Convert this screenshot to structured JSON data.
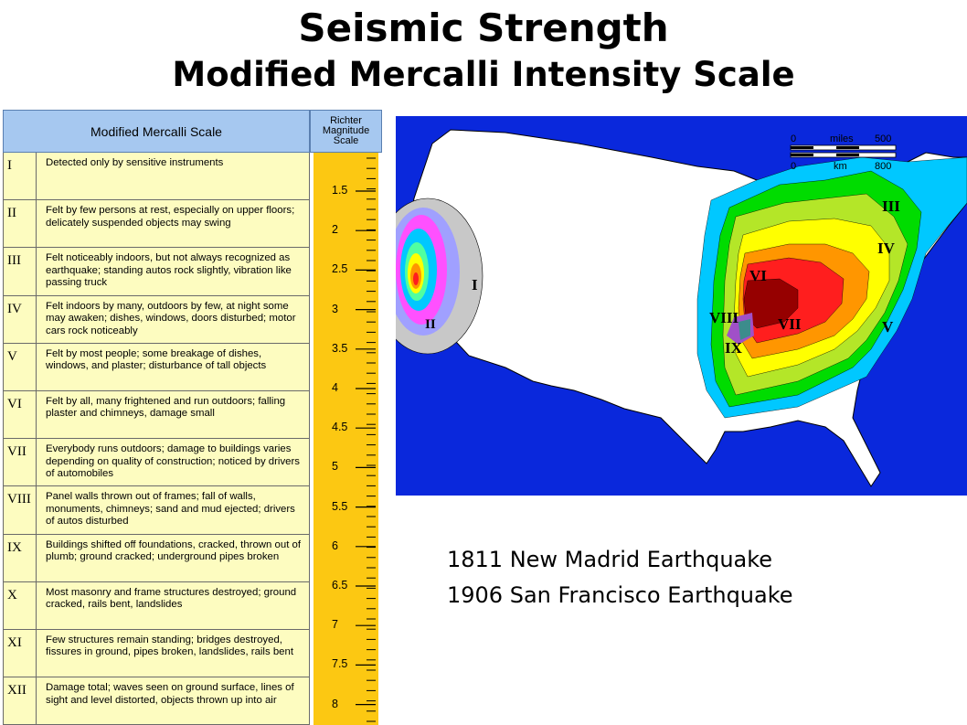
{
  "title": "Seismic Strength",
  "subtitle": "Modified Mercalli Intensity Scale",
  "scale": {
    "header_mmi": "Modified Mercalli Scale",
    "header_richter": [
      "Richter",
      "Magnitude",
      "Scale"
    ],
    "rows": [
      {
        "roman": "I",
        "desc": "Detected only by sensitive instruments"
      },
      {
        "roman": "II",
        "desc": "Felt by few persons at rest, especially on upper floors; delicately suspended objects may swing"
      },
      {
        "roman": "III",
        "desc": "Felt noticeably indoors, but not always recognized as earthquake; standing autos rock slightly, vibration like passing truck"
      },
      {
        "roman": "IV",
        "desc": "Felt indoors by many, outdoors by few, at night some may awaken; dishes, windows, doors disturbed; motor cars rock noticeably"
      },
      {
        "roman": "V",
        "desc": "Felt by most people; some breakage of dishes, windows, and plaster; disturbance of tall objects"
      },
      {
        "roman": "VI",
        "desc": "Felt by all, many frightened and run outdoors; falling plaster and chimneys, damage small"
      },
      {
        "roman": "VII",
        "desc": "Everybody runs outdoors; damage to buildings varies depending on quality of construction; noticed by drivers of automobiles"
      },
      {
        "roman": "VIII",
        "desc": "Panel walls thrown out of frames; fall of walls, monuments, chimneys; sand and mud ejected; drivers of autos disturbed"
      },
      {
        "roman": "IX",
        "desc": "Buildings shifted off foundations, cracked, thrown out of plumb; ground cracked; underground pipes broken"
      },
      {
        "roman": "X",
        "desc": "Most masonry and frame structures destroyed; ground cracked, rails bent, landslides"
      },
      {
        "roman": "XI",
        "desc": "Few structures remain standing; bridges destroyed, fissures in ground, pipes broken, landslides, rails bent"
      },
      {
        "roman": "XII",
        "desc": "Damage total; waves seen on ground surface, lines of sight and level distorted, objects thrown up into air"
      }
    ],
    "richter_values": [
      "1.5",
      "2",
      "2.5",
      "3",
      "3.5",
      "4",
      "4.5",
      "5",
      "5.5",
      "6",
      "6.5",
      "7",
      "7.5",
      "8"
    ]
  },
  "map": {
    "scale_miles_label": "miles",
    "scale_miles_min": "0",
    "scale_miles_max": "500",
    "scale_km_label": "km",
    "scale_km_min": "0",
    "scale_km_max": "800",
    "labels_west": [
      "I",
      "II"
    ],
    "labels_east": [
      "III",
      "IV",
      "V",
      "VI",
      "VII",
      "VIII",
      "IX"
    ],
    "colors": {
      "ocean": "#0a28dc",
      "land": "#ffffff",
      "I": "#c8c8c8",
      "II": "#a0a0ff",
      "III": "#00c8ff",
      "IV": "#00dc00",
      "V": "#b4e628",
      "VI": "#ffff00",
      "VII": "#ff9600",
      "VIII": "#ff1e1e",
      "IX": "#960000"
    }
  },
  "captions": [
    "1811 New Madrid Earthquake",
    "1906 San Francisco Earthquake"
  ]
}
